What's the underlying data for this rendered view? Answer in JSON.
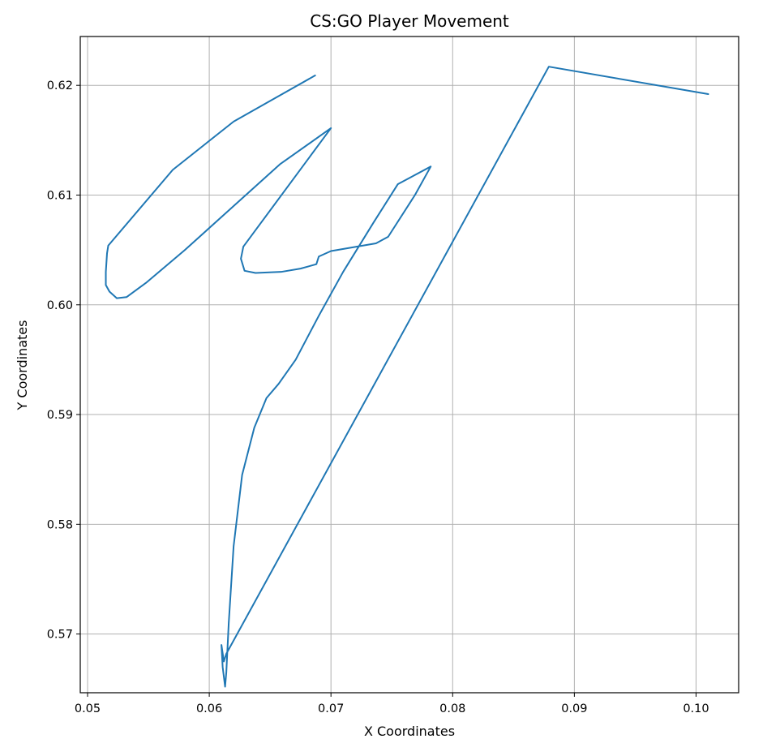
{
  "chart_data": {
    "type": "line",
    "title": "CS:GO Player Movement",
    "xlabel": "X Coordinates",
    "ylabel": "Y Coordinates",
    "xlim": [
      0.0494,
      0.1035
    ],
    "ylim": [
      0.56465,
      0.62445
    ],
    "xticks": [
      0.05,
      0.06,
      0.07,
      0.08,
      0.09,
      0.1
    ],
    "xtick_labels": [
      "0.05",
      "0.06",
      "0.07",
      "0.08",
      "0.09",
      "0.10"
    ],
    "yticks": [
      0.57,
      0.58,
      0.59,
      0.6,
      0.61,
      0.62
    ],
    "ytick_labels": [
      "0.57",
      "0.58",
      "0.59",
      "0.60",
      "0.61",
      "0.62"
    ],
    "grid": true,
    "series": [
      {
        "color": "#1f77b4",
        "x": [
          0.101,
          0.0879,
          0.0614,
          0.0612,
          0.061,
          0.0611,
          0.0613,
          0.0614,
          0.0616,
          0.062,
          0.0627,
          0.0637,
          0.0647,
          0.0657,
          0.0671,
          0.069,
          0.071,
          0.0735,
          0.0755,
          0.0782,
          0.0769,
          0.0747,
          0.0737,
          0.07,
          0.069,
          0.0688,
          0.0675,
          0.0659,
          0.0638,
          0.0629,
          0.0626,
          0.0628,
          0.0636,
          0.07,
          0.0658,
          0.062,
          0.058,
          0.0548,
          0.0532,
          0.0524,
          0.0518,
          0.0515,
          0.0515,
          0.0516,
          0.0517,
          0.057,
          0.062,
          0.0687
        ],
        "y": [
          0.6192,
          0.6217,
          0.5682,
          0.5675,
          0.569,
          0.567,
          0.5652,
          0.5665,
          0.571,
          0.578,
          0.5845,
          0.5888,
          0.5915,
          0.5928,
          0.595,
          0.599,
          0.603,
          0.6075,
          0.611,
          0.6126,
          0.61,
          0.6062,
          0.6056,
          0.6049,
          0.6044,
          0.6037,
          0.6033,
          0.603,
          0.6029,
          0.6031,
          0.6042,
          0.6053,
          0.6065,
          0.6161,
          0.6128,
          0.609,
          0.605,
          0.602,
          0.6007,
          0.6006,
          0.6012,
          0.6018,
          0.603,
          0.6047,
          0.6054,
          0.6123,
          0.6167,
          0.6209
        ]
      }
    ]
  }
}
